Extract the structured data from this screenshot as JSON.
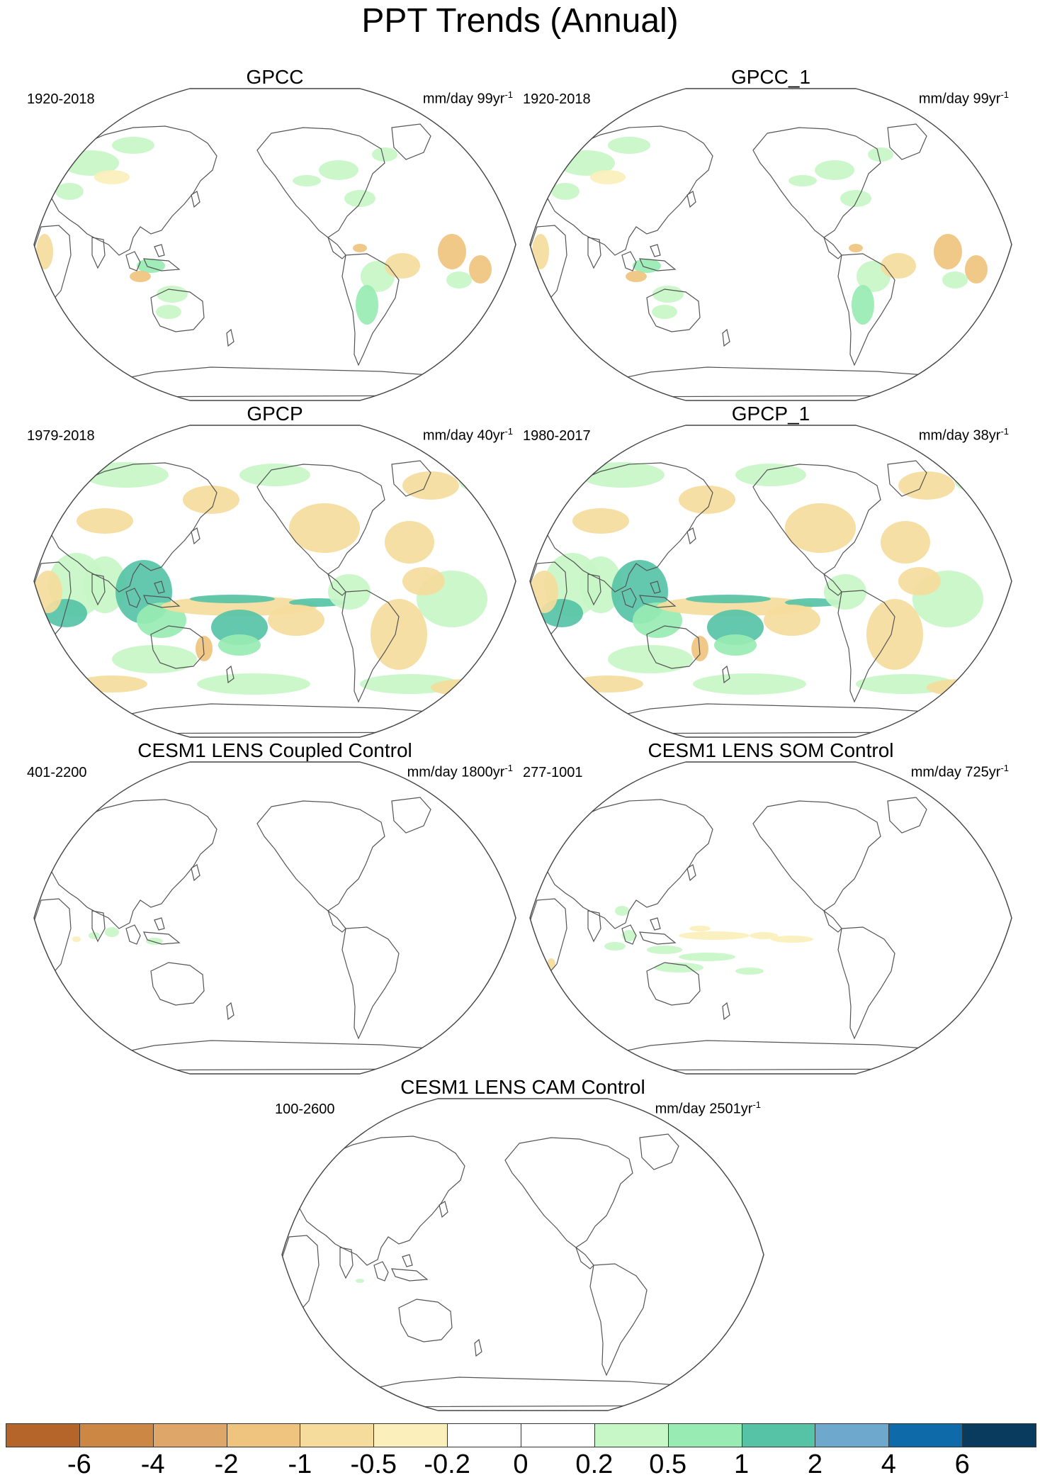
{
  "title": "PPT Trends (Annual)",
  "panels": [
    {
      "title": "GPCC",
      "period": "1920-2018",
      "units": "mm/day 99yr",
      "units_exp": "-1",
      "pattern": "gpcc"
    },
    {
      "title": "GPCC_1",
      "period": "1920-2018",
      "units": "mm/day 99yr",
      "units_exp": "-1",
      "pattern": "gpcc"
    },
    {
      "title": "GPCP",
      "period": "1979-2018",
      "units": "mm/day 40yr",
      "units_exp": "-1",
      "pattern": "gpcp"
    },
    {
      "title": "GPCP_1",
      "period": "1980-2017",
      "units": "mm/day 38yr",
      "units_exp": "-1",
      "pattern": "gpcp"
    },
    {
      "title": "CESM1 LENS Coupled Control",
      "period": "401-2200",
      "units": "mm/day 1800yr",
      "units_exp": "-1",
      "pattern": "coupled"
    },
    {
      "title": "CESM1 LENS SOM Control",
      "period": "277-1001",
      "units": "mm/day 725yr",
      "units_exp": "-1",
      "pattern": "som"
    },
    {
      "title": "CESM1 LENS CAM Control",
      "period": "100-2600",
      "units": "mm/day 2501yr",
      "units_exp": "-1",
      "pattern": "cam"
    }
  ],
  "colorbar": {
    "colors": [
      "#b5652a",
      "#cd8744",
      "#dea669",
      "#efc47f",
      "#f5dc9c",
      "#fbefbb",
      "#ffffff",
      "#ffffff",
      "#c7f6c7",
      "#98ecb3",
      "#56c3a6",
      "#6ea8cc",
      "#0e6aa8",
      "#083b5e"
    ],
    "labels": [
      "-6",
      "-4",
      "-2",
      "-1",
      "-0.5",
      "-0.2",
      "0",
      "0.2",
      "0.5",
      "1",
      "2",
      "4",
      "6"
    ]
  }
}
